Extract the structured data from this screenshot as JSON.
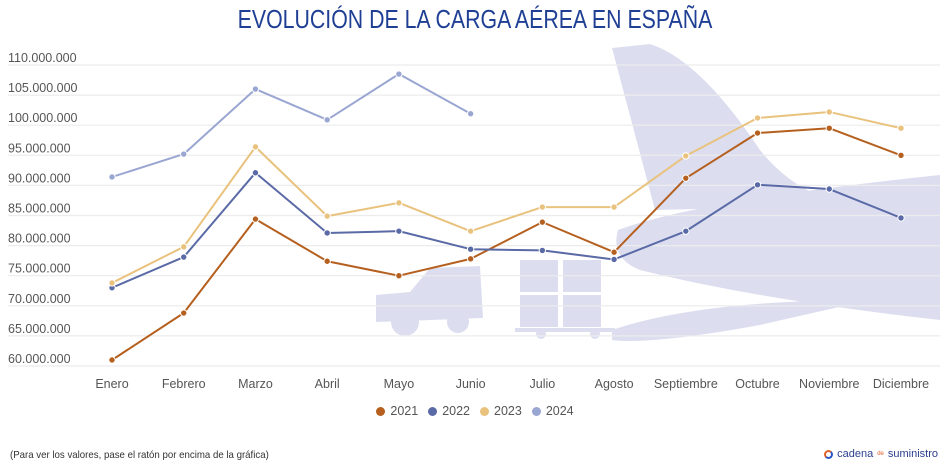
{
  "chart_data": {
    "type": "line",
    "title": "EVOLUCIÓN DE LA CARGA AÉREA EN ESPAÑA",
    "xlabel": "",
    "ylabel": "",
    "categories": [
      "Enero",
      "Febrero",
      "Marzo",
      "Abril",
      "Mayo",
      "Junio",
      "Julio",
      "Agosto",
      "Septiembre",
      "Octubre",
      "Noviembre",
      "Diciembre"
    ],
    "ylim": [
      60000000,
      110000000
    ],
    "yticks": [
      110000000,
      105000000,
      100000000,
      95000000,
      90000000,
      85000000,
      80000000,
      75000000,
      70000000,
      65000000,
      60000000
    ],
    "ytick_labels": [
      "110.000.000",
      "105.000.000",
      "100.000.000",
      "95.000.000",
      "90.000.000",
      "85.000.000",
      "80.000.000",
      "75.000.000",
      "70.000.000",
      "65.000.000",
      "60.000.000"
    ],
    "grid": true,
    "legend_position": "bottom-center",
    "series": [
      {
        "name": "2021",
        "color": "#b5601f",
        "values": [
          61000000,
          68800000,
          84400000,
          77400000,
          75000000,
          77800000,
          83900000,
          78900000,
          91200000,
          98700000,
          99500000,
          95000000
        ]
      },
      {
        "name": "2022",
        "color": "#5a6aa6",
        "values": [
          73000000,
          78100000,
          92100000,
          82100000,
          82400000,
          79400000,
          79200000,
          77700000,
          82400000,
          90100000,
          89400000,
          84600000
        ]
      },
      {
        "name": "2023",
        "color": "#e9c27e",
        "values": [
          73800000,
          79800000,
          96400000,
          84900000,
          87100000,
          82400000,
          86400000,
          86400000,
          94900000,
          101200000,
          102200000,
          99500000
        ]
      },
      {
        "name": "2024",
        "color": "#9aa6d2",
        "values": [
          91400000,
          95200000,
          106000000,
          100900000,
          108500000,
          101900000,
          null,
          null,
          null,
          null,
          null,
          null
        ]
      }
    ]
  },
  "footer": {
    "note": "(Para ver los valores, pase el ratón por encima de la gráfica)",
    "brand_part1": "cadena",
    "brand_small": "de",
    "brand_part2": "suministro"
  },
  "icons": {
    "background": "airplane-truck-cargo-illustration",
    "brand": "cadena-logo-icon"
  }
}
